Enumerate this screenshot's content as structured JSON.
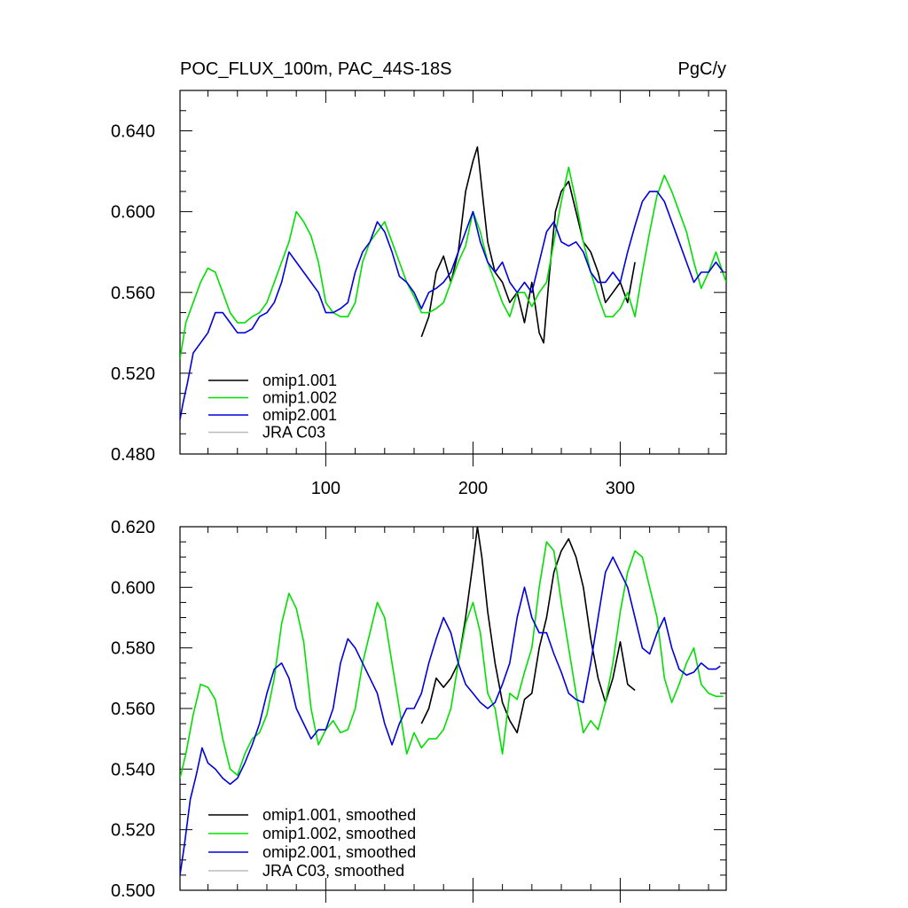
{
  "colors": {
    "omip1_001": "#000000",
    "omip1_002": "#00e000",
    "omip2_001": "#0000e0",
    "jra_c03": "#bbbbbb"
  },
  "chart_data": [
    {
      "type": "line",
      "title": "POC_FLUX_100m, PAC_44S-18S",
      "units": "PgC/y",
      "xlim": [
        1,
        372
      ],
      "ylim": [
        0.48,
        0.66
      ],
      "x_major_ticks": [
        100,
        200,
        300
      ],
      "x_tick_labels": [
        "100",
        "200",
        "300"
      ],
      "y_major_ticks": [
        0.48,
        0.52,
        0.56,
        0.6,
        0.64
      ],
      "y_tick_labels": [
        "0.480",
        "0.520",
        "0.560",
        "0.600",
        "0.640"
      ],
      "legend_position": "bottom-left",
      "series": [
        {
          "name": "omip1.001",
          "color_key": "omip1_001",
          "x": [
            165,
            170,
            175,
            180,
            185,
            190,
            195,
            200,
            203,
            207,
            210,
            215,
            220,
            225,
            230,
            235,
            240,
            245,
            248,
            252,
            256,
            260,
            265,
            270,
            275,
            280,
            285,
            290,
            295,
            300,
            305,
            310
          ],
          "y": [
            0.538,
            0.548,
            0.57,
            0.578,
            0.565,
            0.58,
            0.61,
            0.625,
            0.632,
            0.605,
            0.585,
            0.57,
            0.565,
            0.555,
            0.56,
            0.545,
            0.565,
            0.54,
            0.535,
            0.57,
            0.6,
            0.61,
            0.615,
            0.6,
            0.585,
            0.58,
            0.57,
            0.555,
            0.56,
            0.565,
            0.555,
            0.575
          ]
        },
        {
          "name": "omip1.002",
          "color_key": "omip1_002",
          "x": [
            1,
            5,
            10,
            15,
            20,
            25,
            30,
            35,
            40,
            45,
            50,
            55,
            60,
            65,
            70,
            75,
            80,
            85,
            90,
            95,
            100,
            105,
            110,
            115,
            120,
            125,
            130,
            135,
            140,
            145,
            150,
            155,
            160,
            165,
            170,
            175,
            180,
            185,
            190,
            195,
            200,
            205,
            210,
            215,
            220,
            225,
            230,
            235,
            240,
            245,
            250,
            255,
            260,
            265,
            270,
            275,
            280,
            285,
            290,
            295,
            300,
            305,
            310,
            315,
            320,
            325,
            330,
            335,
            340,
            345,
            350,
            355,
            360,
            365,
            372
          ],
          "y": [
            0.527,
            0.545,
            0.555,
            0.565,
            0.572,
            0.57,
            0.56,
            0.55,
            0.545,
            0.545,
            0.548,
            0.55,
            0.555,
            0.565,
            0.575,
            0.585,
            0.6,
            0.595,
            0.588,
            0.575,
            0.555,
            0.55,
            0.548,
            0.548,
            0.555,
            0.575,
            0.585,
            0.59,
            0.595,
            0.585,
            0.575,
            0.565,
            0.558,
            0.55,
            0.55,
            0.552,
            0.555,
            0.565,
            0.575,
            0.583,
            0.6,
            0.59,
            0.575,
            0.565,
            0.555,
            0.548,
            0.56,
            0.56,
            0.553,
            0.56,
            0.565,
            0.585,
            0.605,
            0.622,
            0.605,
            0.585,
            0.57,
            0.558,
            0.548,
            0.548,
            0.552,
            0.56,
            0.548,
            0.57,
            0.59,
            0.608,
            0.618,
            0.61,
            0.6,
            0.59,
            0.575,
            0.562,
            0.57,
            0.58,
            0.565
          ]
        },
        {
          "name": "omip2.001",
          "color_key": "omip2_001",
          "x": [
            1,
            3,
            6,
            10,
            15,
            20,
            25,
            30,
            35,
            40,
            45,
            50,
            55,
            60,
            65,
            70,
            75,
            80,
            85,
            90,
            95,
            100,
            105,
            110,
            115,
            120,
            125,
            130,
            135,
            140,
            145,
            150,
            155,
            160,
            165,
            170,
            175,
            180,
            185,
            190,
            195,
            200,
            205,
            210,
            215,
            220,
            225,
            230,
            235,
            240,
            245,
            250,
            255,
            260,
            265,
            270,
            275,
            280,
            285,
            290,
            295,
            300,
            305,
            310,
            315,
            320,
            325,
            330,
            335,
            340,
            345,
            350,
            355,
            360,
            365,
            370
          ],
          "y": [
            0.497,
            0.505,
            0.515,
            0.53,
            0.535,
            0.54,
            0.55,
            0.55,
            0.545,
            0.54,
            0.54,
            0.542,
            0.548,
            0.55,
            0.555,
            0.565,
            0.58,
            0.575,
            0.57,
            0.565,
            0.56,
            0.55,
            0.55,
            0.552,
            0.555,
            0.57,
            0.58,
            0.585,
            0.595,
            0.59,
            0.58,
            0.568,
            0.565,
            0.56,
            0.552,
            0.56,
            0.562,
            0.565,
            0.57,
            0.58,
            0.59,
            0.6,
            0.585,
            0.575,
            0.57,
            0.575,
            0.565,
            0.56,
            0.565,
            0.56,
            0.575,
            0.59,
            0.595,
            0.585,
            0.583,
            0.585,
            0.58,
            0.57,
            0.565,
            0.565,
            0.57,
            0.565,
            0.58,
            0.593,
            0.605,
            0.61,
            0.61,
            0.605,
            0.595,
            0.585,
            0.575,
            0.565,
            0.57,
            0.57,
            0.575,
            0.57
          ]
        },
        {
          "name": "JRA C03",
          "color_key": "jra_c03",
          "x": [],
          "y": []
        }
      ]
    },
    {
      "type": "line",
      "xlim": [
        1,
        372
      ],
      "ylim": [
        0.5,
        0.62
      ],
      "x_major_ticks": [
        100,
        200,
        300
      ],
      "y_major_ticks": [
        0.5,
        0.52,
        0.54,
        0.56,
        0.58,
        0.6,
        0.62
      ],
      "y_tick_labels": [
        "0.500",
        "0.520",
        "0.540",
        "0.560",
        "0.580",
        "0.600",
        "0.620"
      ],
      "legend_position": "bottom-left",
      "series": [
        {
          "name": "omip1.001, smoothed",
          "color_key": "omip1_001",
          "x": [
            165,
            170,
            175,
            180,
            185,
            190,
            195,
            200,
            203,
            206,
            210,
            215,
            220,
            225,
            230,
            235,
            240,
            245,
            250,
            255,
            260,
            265,
            270,
            275,
            280,
            285,
            290,
            295,
            300,
            305,
            310
          ],
          "y": [
            0.555,
            0.56,
            0.57,
            0.567,
            0.57,
            0.575,
            0.59,
            0.608,
            0.62,
            0.61,
            0.592,
            0.575,
            0.562,
            0.556,
            0.552,
            0.563,
            0.565,
            0.58,
            0.59,
            0.605,
            0.612,
            0.616,
            0.61,
            0.6,
            0.583,
            0.57,
            0.562,
            0.57,
            0.582,
            0.568,
            0.566
          ]
        },
        {
          "name": "omip1.002, smoothed",
          "color_key": "omip1_002",
          "x": [
            1,
            5,
            10,
            15,
            20,
            25,
            30,
            35,
            40,
            45,
            50,
            55,
            60,
            65,
            70,
            75,
            80,
            85,
            90,
            95,
            100,
            105,
            110,
            115,
            120,
            125,
            130,
            135,
            140,
            145,
            150,
            155,
            160,
            165,
            170,
            175,
            180,
            185,
            190,
            195,
            200,
            205,
            210,
            215,
            220,
            225,
            230,
            235,
            240,
            245,
            250,
            255,
            260,
            265,
            270,
            275,
            280,
            285,
            290,
            295,
            300,
            305,
            310,
            315,
            320,
            325,
            330,
            335,
            340,
            345,
            350,
            355,
            360,
            365,
            370
          ],
          "y": [
            0.537,
            0.545,
            0.558,
            0.568,
            0.567,
            0.563,
            0.55,
            0.54,
            0.538,
            0.545,
            0.55,
            0.552,
            0.558,
            0.57,
            0.588,
            0.598,
            0.593,
            0.582,
            0.56,
            0.548,
            0.553,
            0.556,
            0.552,
            0.553,
            0.56,
            0.575,
            0.585,
            0.595,
            0.59,
            0.575,
            0.56,
            0.545,
            0.552,
            0.547,
            0.55,
            0.55,
            0.553,
            0.56,
            0.575,
            0.588,
            0.595,
            0.585,
            0.565,
            0.56,
            0.545,
            0.565,
            0.563,
            0.572,
            0.58,
            0.6,
            0.615,
            0.612,
            0.595,
            0.58,
            0.565,
            0.552,
            0.556,
            0.553,
            0.562,
            0.575,
            0.592,
            0.605,
            0.612,
            0.61,
            0.6,
            0.59,
            0.57,
            0.562,
            0.568,
            0.575,
            0.58,
            0.568,
            0.565,
            0.564,
            0.564
          ]
        },
        {
          "name": "omip2.001, smoothed",
          "color_key": "omip2_001",
          "x": [
            1,
            4,
            8,
            12,
            16,
            20,
            25,
            30,
            35,
            40,
            45,
            50,
            55,
            60,
            65,
            70,
            75,
            80,
            85,
            90,
            95,
            100,
            105,
            110,
            115,
            120,
            125,
            130,
            135,
            140,
            145,
            150,
            155,
            160,
            165,
            170,
            175,
            180,
            185,
            190,
            195,
            200,
            205,
            210,
            215,
            220,
            225,
            230,
            235,
            240,
            245,
            250,
            255,
            260,
            265,
            270,
            275,
            280,
            285,
            290,
            295,
            300,
            305,
            310,
            315,
            320,
            325,
            330,
            335,
            340,
            345,
            350,
            355,
            360,
            365,
            368
          ],
          "y": [
            0.505,
            0.515,
            0.53,
            0.538,
            0.547,
            0.542,
            0.54,
            0.537,
            0.535,
            0.537,
            0.542,
            0.548,
            0.555,
            0.565,
            0.573,
            0.575,
            0.57,
            0.56,
            0.555,
            0.55,
            0.553,
            0.553,
            0.56,
            0.575,
            0.583,
            0.58,
            0.575,
            0.57,
            0.565,
            0.555,
            0.548,
            0.555,
            0.56,
            0.56,
            0.565,
            0.575,
            0.583,
            0.59,
            0.585,
            0.575,
            0.568,
            0.565,
            0.562,
            0.56,
            0.562,
            0.568,
            0.575,
            0.59,
            0.6,
            0.59,
            0.585,
            0.585,
            0.578,
            0.572,
            0.565,
            0.563,
            0.562,
            0.575,
            0.59,
            0.605,
            0.61,
            0.605,
            0.6,
            0.59,
            0.58,
            0.578,
            0.585,
            0.59,
            0.58,
            0.573,
            0.571,
            0.572,
            0.575,
            0.573,
            0.573,
            0.574
          ]
        },
        {
          "name": "JRA C03, smoothed",
          "color_key": "jra_c03",
          "x": [],
          "y": []
        }
      ]
    }
  ]
}
